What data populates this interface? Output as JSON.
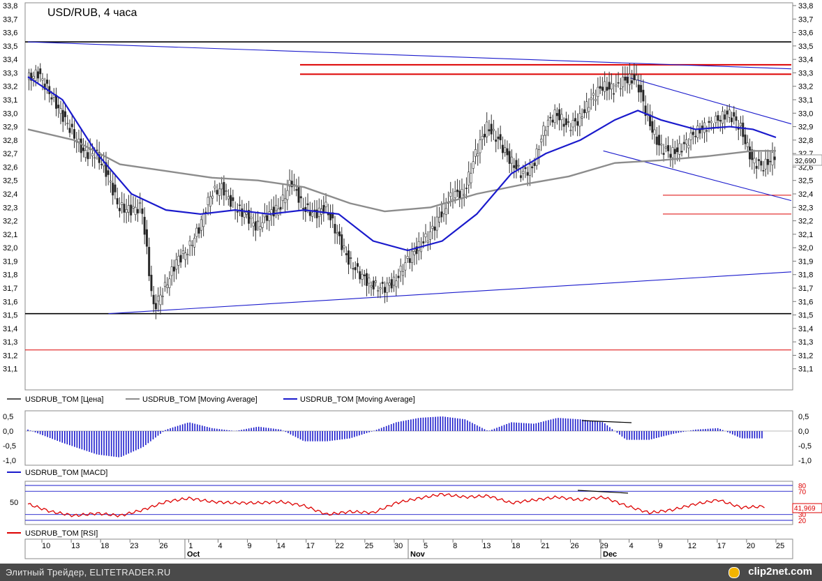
{
  "chart_data": [
    {
      "type": "candlestick",
      "title": "USD/RUB, 4 часа",
      "ylim": [
        31.0,
        33.8
      ],
      "y_ticks": [
        "33,8",
        "33,7",
        "33,6",
        "33,5",
        "33,4",
        "33,3",
        "33,2",
        "33,1",
        "33,0",
        "32,9",
        "32,8",
        "32,7",
        "32,6",
        "32,5",
        "32,4",
        "32,3",
        "32,2",
        "32,1",
        "32,0",
        "31,9",
        "31,8",
        "31,7",
        "31,6",
        "31,5",
        "31,4",
        "31,3",
        "31,2",
        "31,1"
      ],
      "last_price_label": "32,690",
      "price_path": [
        [
          0,
          33.25
        ],
        [
          1,
          33.3
        ],
        [
          2,
          33.15
        ],
        [
          3,
          33.0
        ],
        [
          4,
          32.85
        ],
        [
          5,
          32.7
        ],
        [
          6,
          32.7
        ],
        [
          7,
          32.55
        ],
        [
          8,
          32.3
        ],
        [
          9,
          32.28
        ],
        [
          10,
          32.3
        ],
        [
          11,
          31.55
        ],
        [
          12,
          31.7
        ],
        [
          13,
          31.9
        ],
        [
          14,
          31.98
        ],
        [
          15,
          32.15
        ],
        [
          16,
          32.4
        ],
        [
          17,
          32.45
        ],
        [
          18,
          32.3
        ],
        [
          19,
          32.25
        ],
        [
          20,
          32.15
        ],
        [
          21,
          32.25
        ],
        [
          22,
          32.3
        ],
        [
          23,
          32.5
        ],
        [
          24,
          32.3
        ],
        [
          25,
          32.25
        ],
        [
          26,
          32.3
        ],
        [
          27,
          32.1
        ],
        [
          28,
          31.9
        ],
        [
          29,
          31.8
        ],
        [
          30,
          31.72
        ],
        [
          31,
          31.7
        ],
        [
          32,
          31.75
        ],
        [
          33,
          31.9
        ],
        [
          34,
          32.0
        ],
        [
          35,
          32.1
        ],
        [
          36,
          32.25
        ],
        [
          37,
          32.4
        ],
        [
          38,
          32.4
        ],
        [
          39,
          32.7
        ],
        [
          40,
          32.9
        ],
        [
          41,
          32.8
        ],
        [
          42,
          32.65
        ],
        [
          43,
          32.55
        ],
        [
          44,
          32.6
        ],
        [
          45,
          32.9
        ],
        [
          46,
          33.0
        ],
        [
          47,
          32.9
        ],
        [
          48,
          32.95
        ],
        [
          49,
          33.1
        ],
        [
          50,
          33.2
        ],
        [
          51,
          33.18
        ],
        [
          52,
          33.25
        ],
        [
          53,
          33.25
        ],
        [
          54,
          32.95
        ],
        [
          55,
          32.75
        ],
        [
          56,
          32.7
        ],
        [
          57,
          32.75
        ],
        [
          58,
          32.85
        ],
        [
          59,
          32.9
        ],
        [
          60,
          32.95
        ],
        [
          61,
          33.0
        ],
        [
          62,
          32.9
        ],
        [
          63,
          32.65
        ],
        [
          64,
          32.6
        ],
        [
          65,
          32.69
        ]
      ],
      "moving_average_short": [
        [
          0,
          33.27
        ],
        [
          3,
          33.1
        ],
        [
          6,
          32.7
        ],
        [
          9,
          32.4
        ],
        [
          12,
          32.28
        ],
        [
          15,
          32.25
        ],
        [
          18,
          32.28
        ],
        [
          21,
          32.25
        ],
        [
          24,
          32.28
        ],
        [
          27,
          32.25
        ],
        [
          30,
          32.05
        ],
        [
          33,
          31.98
        ],
        [
          36,
          32.05
        ],
        [
          39,
          32.25
        ],
        [
          42,
          32.55
        ],
        [
          45,
          32.7
        ],
        [
          48,
          32.8
        ],
        [
          51,
          32.95
        ],
        [
          53,
          33.02
        ],
        [
          55,
          32.95
        ],
        [
          58,
          32.88
        ],
        [
          61,
          32.9
        ],
        [
          63,
          32.88
        ],
        [
          65,
          32.82
        ]
      ],
      "moving_average_long": [
        [
          0,
          32.88
        ],
        [
          4,
          32.8
        ],
        [
          8,
          32.62
        ],
        [
          12,
          32.57
        ],
        [
          16,
          32.52
        ],
        [
          20,
          32.5
        ],
        [
          24,
          32.45
        ],
        [
          28,
          32.33
        ],
        [
          31,
          32.27
        ],
        [
          35,
          32.3
        ],
        [
          39,
          32.4
        ],
        [
          43,
          32.47
        ],
        [
          47,
          32.53
        ],
        [
          51,
          32.63
        ],
        [
          55,
          32.65
        ],
        [
          59,
          32.68
        ],
        [
          63,
          32.72
        ],
        [
          65,
          32.72
        ]
      ],
      "horizontal_levels": [
        {
          "value": 33.53,
          "color": "#000000"
        },
        {
          "value": 33.36,
          "color": "#dd0000"
        },
        {
          "value": 33.29,
          "color": "#dd0000"
        },
        {
          "value": 32.39,
          "color": "#dd0000"
        },
        {
          "value": 32.25,
          "color": "#dd0000"
        },
        {
          "value": 31.51,
          "color": "#000000"
        },
        {
          "value": 31.24,
          "color": "#dd0000"
        }
      ],
      "trend_lines": [
        {
          "from": [
            0,
            33.53
          ],
          "to": [
            65,
            33.33
          ],
          "color": "#1a1acc"
        },
        {
          "from": [
            7,
            31.51
          ],
          "to": [
            65,
            31.82
          ],
          "color": "#1a1acc"
        },
        {
          "from": [
            52,
            33.27
          ],
          "to": [
            65,
            32.92
          ],
          "color": "#1a1acc"
        },
        {
          "from": [
            50,
            32.72
          ],
          "to": [
            65,
            32.35
          ],
          "color": "#1a1acc"
        }
      ],
      "legend": [
        {
          "label": "USDRUB_TOM [Цена]",
          "color": "#555555"
        },
        {
          "label": "USDRUB_TOM [Moving Average]",
          "color": "#8c8c8c"
        },
        {
          "label": "USDRUB_TOM [Moving Average]",
          "color": "#1a1acc"
        }
      ]
    },
    {
      "type": "histogram",
      "ylim": [
        -1.0,
        0.5
      ],
      "y_ticks": [
        "0,5",
        "0,0",
        "-0,5",
        "-1,0"
      ],
      "macd_path": [
        [
          0,
          0.05
        ],
        [
          3,
          -0.4
        ],
        [
          6,
          -0.8
        ],
        [
          8,
          -0.9
        ],
        [
          10,
          -0.55
        ],
        [
          12,
          0.05
        ],
        [
          14,
          0.3
        ],
        [
          16,
          0.1
        ],
        [
          18,
          0.0
        ],
        [
          20,
          0.15
        ],
        [
          22,
          0.05
        ],
        [
          24,
          -0.35
        ],
        [
          26,
          -0.35
        ],
        [
          28,
          -0.25
        ],
        [
          30,
          0.0
        ],
        [
          32,
          0.3
        ],
        [
          34,
          0.45
        ],
        [
          36,
          0.5
        ],
        [
          38,
          0.4
        ],
        [
          40,
          0.0
        ],
        [
          42,
          0.3
        ],
        [
          44,
          0.25
        ],
        [
          46,
          0.45
        ],
        [
          48,
          0.4
        ],
        [
          50,
          0.3
        ],
        [
          52,
          -0.3
        ],
        [
          54,
          -0.3
        ],
        [
          56,
          -0.1
        ],
        [
          58,
          0.05
        ],
        [
          60,
          0.1
        ],
        [
          62,
          -0.25
        ],
        [
          64,
          -0.25
        ]
      ],
      "legend": [
        {
          "label": "USDRUB_TOM [MACD]",
          "color": "#1a1acc"
        }
      ]
    },
    {
      "type": "line",
      "ylim": [
        20,
        80
      ],
      "level_labels": [
        "80",
        "70",
        "50",
        "30",
        "20"
      ],
      "left_label": "50",
      "last_value_label": "41,969",
      "rsi_path": [
        [
          0,
          48
        ],
        [
          2,
          35
        ],
        [
          4,
          28
        ],
        [
          6,
          32
        ],
        [
          8,
          28
        ],
        [
          10,
          38
        ],
        [
          12,
          52
        ],
        [
          14,
          58
        ],
        [
          16,
          52
        ],
        [
          18,
          50
        ],
        [
          20,
          50
        ],
        [
          22,
          52
        ],
        [
          24,
          45
        ],
        [
          26,
          30
        ],
        [
          28,
          35
        ],
        [
          30,
          33
        ],
        [
          32,
          50
        ],
        [
          34,
          58
        ],
        [
          36,
          65
        ],
        [
          38,
          60
        ],
        [
          40,
          62
        ],
        [
          42,
          50
        ],
        [
          44,
          55
        ],
        [
          46,
          60
        ],
        [
          48,
          55
        ],
        [
          50,
          60
        ],
        [
          52,
          45
        ],
        [
          54,
          33
        ],
        [
          56,
          38
        ],
        [
          58,
          48
        ],
        [
          60,
          55
        ],
        [
          62,
          42
        ],
        [
          64,
          44
        ]
      ],
      "legend": [
        {
          "label": "USDRUB_TOM [RSI]",
          "color": "#dd0000"
        }
      ]
    }
  ],
  "x_axis": {
    "day_ticks": [
      "10",
      "13",
      "18",
      "23",
      "26",
      "1",
      "4",
      "9",
      "14",
      "17",
      "22",
      "25",
      "30",
      "5",
      "8",
      "13",
      "18",
      "21",
      "26",
      "29",
      "4",
      "9",
      "12",
      "17",
      "20",
      "25"
    ],
    "month_labels": [
      "Oct",
      "Nov",
      "Dec"
    ]
  },
  "footer": {
    "credit": "Элитный Трейдер, ELITETRADER.RU",
    "brand": "clip2net.com"
  },
  "colors": {
    "price": "#333333",
    "ma_long": "#8c8c8c",
    "ma_short": "#1a1acc",
    "macd": "#1a1acc",
    "rsi": "#dd0000",
    "level_red": "#dd0000",
    "level_black": "#000000",
    "trend": "#1a1acc"
  }
}
